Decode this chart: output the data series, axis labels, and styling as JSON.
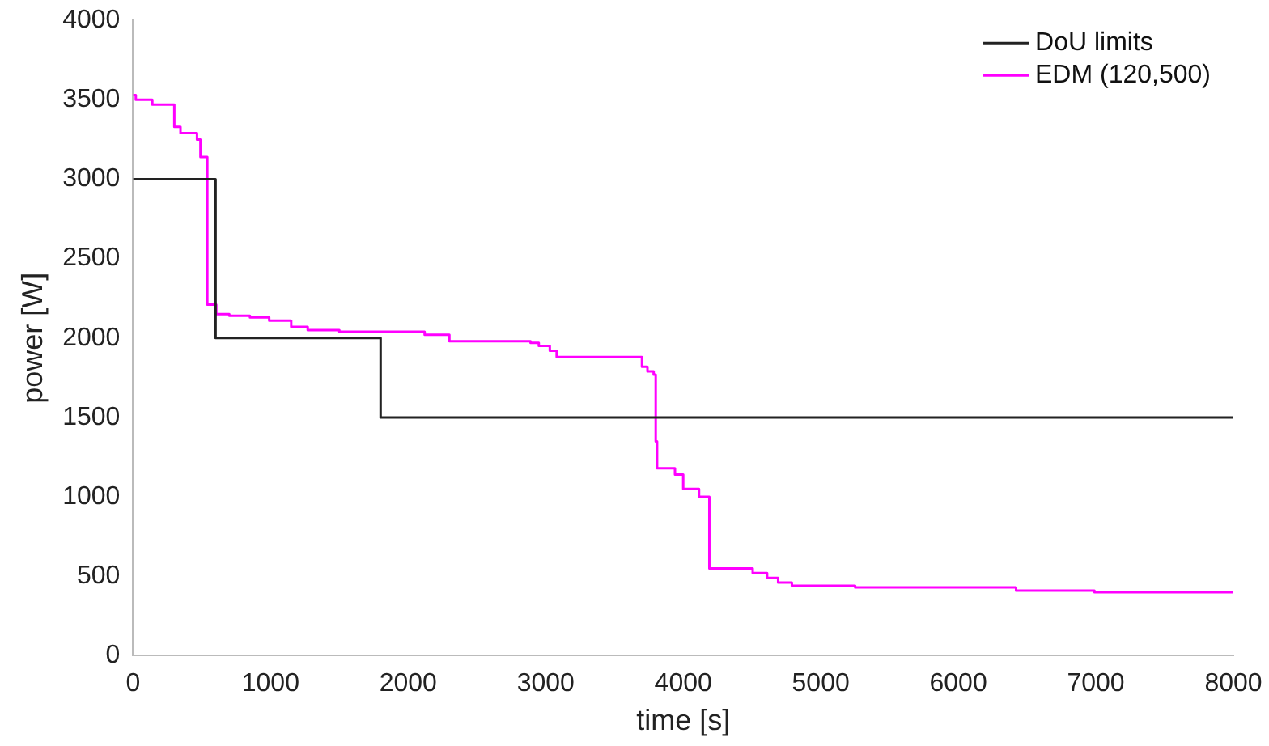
{
  "chart_data": {
    "type": "step",
    "xlabel": "time [s]",
    "ylabel": "power [W]",
    "xlim": [
      0,
      8000
    ],
    "xticks": [
      0,
      1000,
      2000,
      3000,
      4000,
      5000,
      6000,
      7000,
      8000
    ],
    "ylim": [
      0,
      4000
    ],
    "yticks": [
      0,
      500,
      1000,
      1500,
      2000,
      2500,
      3000,
      3500,
      4000
    ],
    "grid": false,
    "legend": "top right",
    "series": [
      {
        "name": "DoU limits",
        "color": "#222222",
        "x": [
          0,
          600,
          1800,
          8000
        ],
        "values": [
          3000,
          2000,
          1500,
          1500
        ]
      },
      {
        "name": "EDM (120,500)",
        "color": "#ff00ff",
        "x": [
          0,
          20,
          140,
          300,
          345,
          465,
          490,
          540,
          605,
          700,
          850,
          990,
          1150,
          1270,
          1500,
          1800,
          2120,
          2300,
          2890,
          2950,
          3030,
          3080,
          3700,
          3740,
          3785,
          3800,
          3810,
          3940,
          4000,
          4115,
          4190,
          4505,
          4610,
          4690,
          4790,
          5250,
          6420,
          6990,
          8000
        ],
        "values": [
          3530,
          3500,
          3470,
          3330,
          3290,
          3250,
          3140,
          2210,
          2150,
          2140,
          2130,
          2110,
          2070,
          2050,
          2040,
          2040,
          2020,
          1980,
          1970,
          1950,
          1920,
          1880,
          1820,
          1790,
          1770,
          1350,
          1180,
          1140,
          1050,
          1000,
          550,
          520,
          490,
          460,
          440,
          430,
          410,
          400,
          400
        ]
      }
    ]
  }
}
